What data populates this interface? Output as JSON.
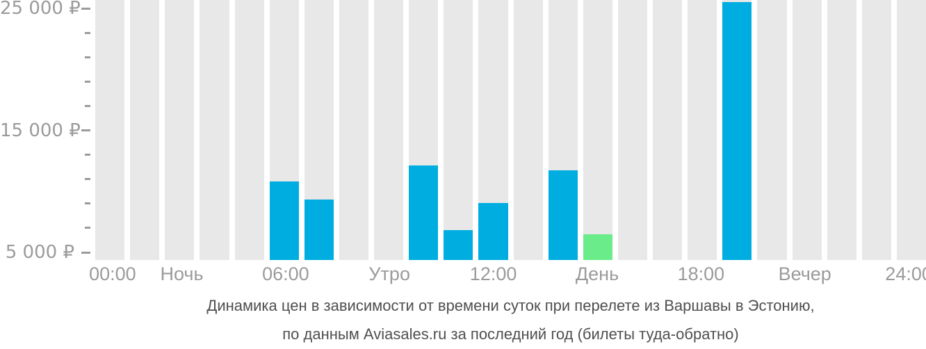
{
  "chart_data": {
    "type": "bar",
    "description": "Price dynamics by time of day for flights, 24 hourly columns; gray columns are full-height backgrounds, colored bars show round-trip ticket prices in rubles",
    "caption": {
      "line1": "Динамика цен в зависимости от времени суток при перелете из Варшавы в Эстонию,",
      "line2": "по данным Aviasales.ru за последний год (билеты туда-обратно)"
    },
    "columns": 24,
    "values": [
      null,
      null,
      null,
      null,
      null,
      10800,
      9350,
      null,
      null,
      12100,
      6850,
      9050,
      null,
      11700,
      6500,
      null,
      null,
      null,
      25500,
      null,
      null,
      null,
      null,
      null
    ],
    "bar_colors": [
      null,
      null,
      null,
      null,
      null,
      "blue",
      "blue",
      null,
      null,
      "blue",
      "blue",
      "blue",
      null,
      "blue",
      "green",
      null,
      null,
      null,
      "blue",
      null,
      null,
      null,
      null,
      null
    ],
    "x_axis": {
      "tick_labels": [
        {
          "label": "00:00",
          "column": 1
        },
        {
          "label": "Ночь",
          "column": 3
        },
        {
          "label": "06:00",
          "column": 6
        },
        {
          "label": "Утро",
          "column": 9
        },
        {
          "label": "12:00",
          "column": 12
        },
        {
          "label": "День",
          "column": 15
        },
        {
          "label": "18:00",
          "column": 18
        },
        {
          "label": "Вечер",
          "column": 21
        },
        {
          "label": "24:00",
          "column": 24
        }
      ]
    },
    "y_axis": {
      "unit": "₽",
      "major_ticks": [
        {
          "value": 25000,
          "label": "25 000 ₽"
        },
        {
          "value": 15000,
          "label": "15 000 ₽"
        },
        {
          "value": 5000,
          "label": "5 000 ₽"
        }
      ],
      "minor_tick_values": [
        23000,
        21000,
        19000,
        17000,
        13000,
        11000,
        9000,
        7000
      ],
      "baseline_value": 4370,
      "range_top_value": 25700,
      "grid": "off",
      "legend": "none"
    }
  },
  "colors": {
    "background": "#ffffff",
    "column_background": "#e8e8e8",
    "bar_highlight_blue": "#00ade0",
    "bar_highlight_green": "#6aec8a",
    "axis_text": "#9b9b9b",
    "tick": "#9b9b9b",
    "caption_text": "#4f4f4f"
  }
}
